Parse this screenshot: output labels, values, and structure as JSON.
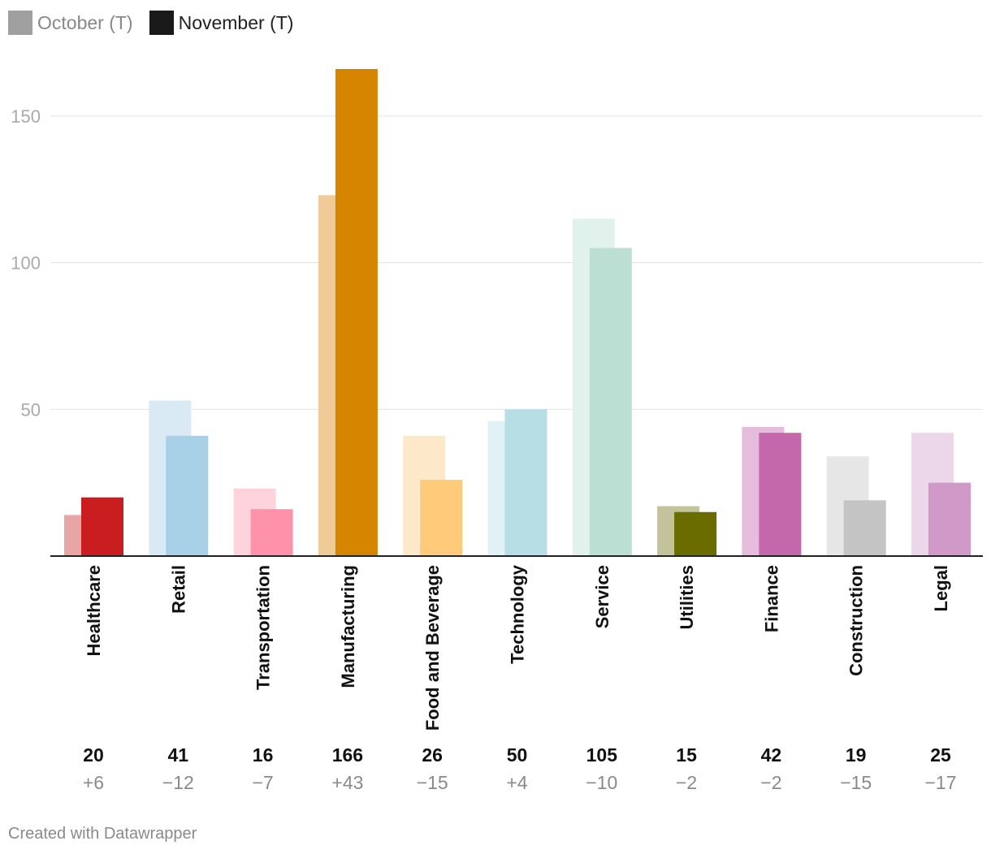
{
  "legend": {
    "october": {
      "label": "October (T)",
      "color": "#a0a0a0"
    },
    "november": {
      "label": "November (T)",
      "color": "#1a1a1a"
    }
  },
  "footer": "Created with Datawrapper",
  "chart_data": {
    "type": "bar",
    "title": "",
    "xlabel": "",
    "ylabel": "",
    "ylim": [
      0,
      166
    ],
    "yticks": [
      50,
      100,
      150
    ],
    "categories": [
      "Healthcare",
      "Retail",
      "Transportation",
      "Manufacturing",
      "Food and Beverage",
      "Technology",
      "Service",
      "Utilities",
      "Finance",
      "Construction",
      "Legal"
    ],
    "series": [
      {
        "name": "October (T)",
        "values": [
          14,
          53,
          23,
          123,
          41,
          46,
          115,
          17,
          44,
          34,
          42
        ]
      },
      {
        "name": "November (T)",
        "values": [
          20,
          41,
          16,
          166,
          26,
          50,
          105,
          15,
          42,
          19,
          25
        ]
      }
    ],
    "value_labels": [
      "20",
      "41",
      "16",
      "166",
      "26",
      "50",
      "105",
      "15",
      "42",
      "19",
      "25"
    ],
    "change_labels": [
      "+6",
      "−12",
      "−7",
      "+43",
      "−15",
      "+4",
      "−10",
      "−2",
      "−2",
      "−15",
      "−17"
    ],
    "colors_october": [
      "#e8a5a5",
      "#d9eaf4",
      "#ffd3dc",
      "#efcc97",
      "#fde8c9",
      "#e0f2f5",
      "#e1f2ec",
      "#c2c39b",
      "#e6bcdd",
      "#e6e6e6",
      "#ecd7ea"
    ],
    "colors_november": [
      "#c91d1f",
      "#a8d0e6",
      "#ff92ab",
      "#d68500",
      "#ffcb7a",
      "#b6dee4",
      "#bbdfd2",
      "#6a6c00",
      "#c467ab",
      "#c4c4c4",
      "#d199c8"
    ]
  }
}
